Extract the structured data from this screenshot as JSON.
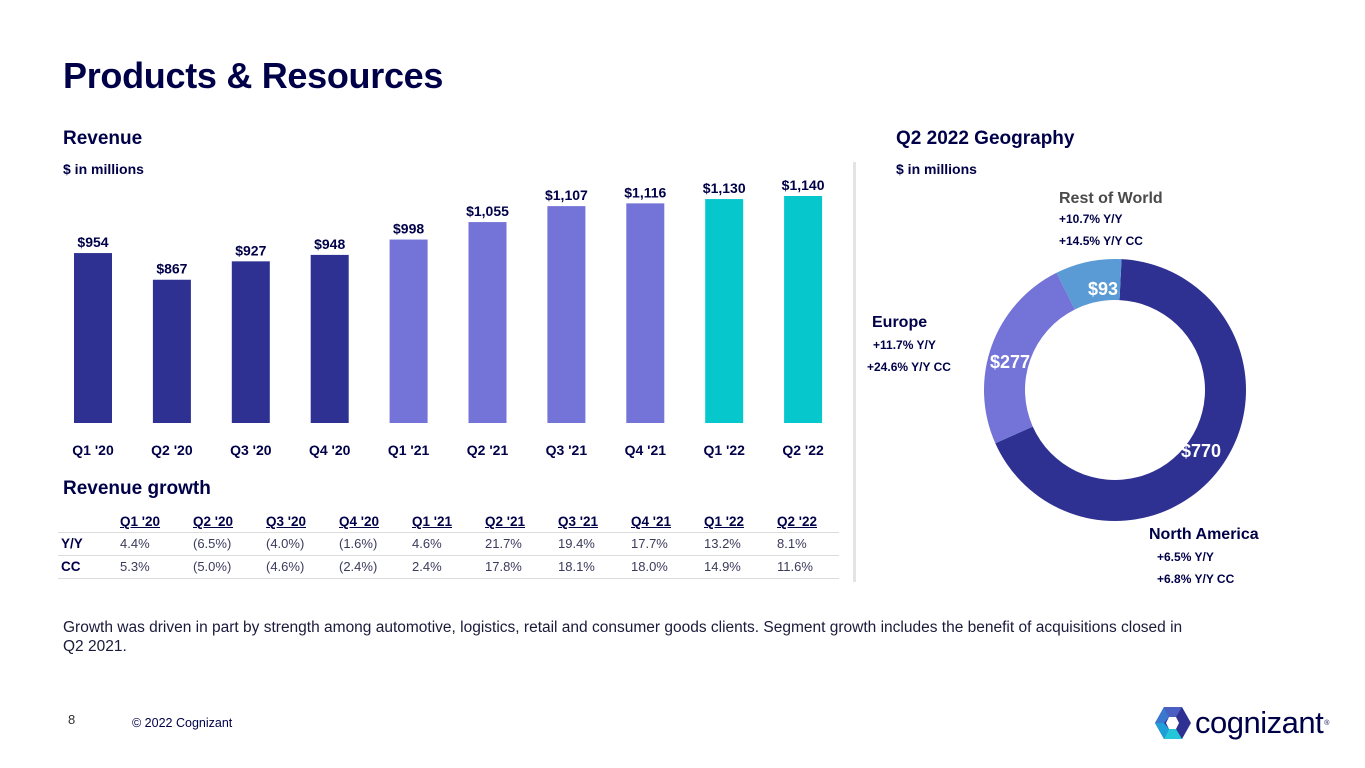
{
  "page": {
    "title": "Products & Resources",
    "page_number": "8",
    "copyright": "© 2022 Cognizant",
    "brand": "cognizant",
    "brand_mark": "®",
    "note": "Growth was driven in part by strength among automotive, logistics, retail and consumer goods clients. Segment growth includes the benefit of acquisitions closed in Q2 2021."
  },
  "revenue_section": {
    "title": "Revenue",
    "unit": "$ in millions"
  },
  "growth_section": {
    "title": "Revenue growth",
    "columns": [
      "Q1 '20",
      "Q2 '20",
      "Q3 '20",
      "Q4 '20",
      "Q1 '21",
      "Q2 '21",
      "Q3 '21",
      "Q4 '21",
      "Q1 '22",
      "Q2 '22"
    ],
    "rows": [
      {
        "label": "Y/Y",
        "values": [
          "4.4%",
          "(6.5%)",
          "(4.0%)",
          "(1.6%)",
          "4.6%",
          "21.7%",
          "19.4%",
          "17.7%",
          "13.2%",
          "8.1%"
        ]
      },
      {
        "label": "CC",
        "values": [
          "5.3%",
          "(5.0%)",
          "(4.6%)",
          "(2.4%)",
          "2.4%",
          "17.8%",
          "18.1%",
          "18.0%",
          "14.9%",
          "11.6%"
        ]
      }
    ]
  },
  "geo_section": {
    "title": "Q2 2022 Geography",
    "unit": "$ in millions",
    "regions": {
      "rest_of_world": {
        "name": "Rest of World",
        "yy": "+10.7%  Y/Y",
        "cc": "+14.5%  Y/Y CC"
      },
      "europe": {
        "name": "Europe",
        "yy": "+11.7%  Y/Y",
        "cc": "+24.6%  Y/Y CC"
      },
      "north_america": {
        "name": "North America",
        "yy": "+6.5%  Y/Y",
        "cc": "+6.8%  Y/Y CC"
      }
    }
  },
  "colors": {
    "navy": "#2e3192",
    "purple": "#7373d8",
    "teal": "#06c7cc",
    "light_blue": "#5b9bd5",
    "text_dark": "#000048"
  },
  "chart_data": [
    {
      "type": "bar",
      "title": "Revenue",
      "subtitle": "$ in millions",
      "categories": [
        "Q1 '20",
        "Q2 '20",
        "Q3 '20",
        "Q4 '20",
        "Q1 '21",
        "Q2 '21",
        "Q3 '21",
        "Q4 '21",
        "Q1 '22",
        "Q2 '22"
      ],
      "values": [
        954,
        867,
        927,
        948,
        998,
        1055,
        1107,
        1116,
        1130,
        1140
      ],
      "labels": [
        "$954",
        "$867",
        "$927",
        "$948",
        "$998",
        "$1,055",
        "$1,107",
        "$1,116",
        "$1,130",
        "$1,140"
      ],
      "bar_colors": [
        "#2e3192",
        "#2e3192",
        "#2e3192",
        "#2e3192",
        "#7373d8",
        "#7373d8",
        "#7373d8",
        "#7373d8",
        "#06c7cc",
        "#06c7cc"
      ],
      "xlabel": "",
      "ylabel": "",
      "grid": false,
      "ylim": [
        0,
        1200
      ]
    },
    {
      "type": "pie",
      "donut": true,
      "title": "Q2 2022 Geography",
      "subtitle": "$ in millions",
      "slices": [
        {
          "name": "North America",
          "value": 770,
          "label": "$770",
          "color": "#2e3192"
        },
        {
          "name": "Europe",
          "value": 277,
          "label": "$277",
          "color": "#7373d8"
        },
        {
          "name": "Rest of World",
          "value": 93,
          "label": "$93",
          "color": "#5b9bd5"
        }
      ]
    }
  ]
}
